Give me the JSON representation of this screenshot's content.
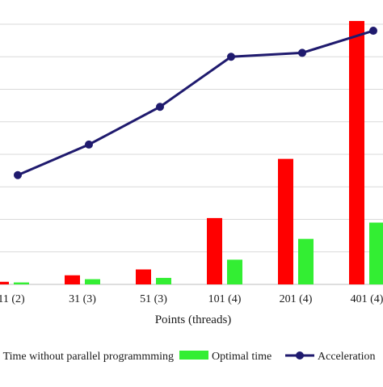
{
  "chart_data": {
    "type": "bar",
    "categories": [
      "11 (2)",
      "31 (3)",
      "51 (3)",
      "101 (4)",
      "201 (4)",
      "401 (4)"
    ],
    "xlabel": "Points (threads)",
    "ylabel": "",
    "ylim": [
      0,
      4.0
    ],
    "grid": true,
    "legend_position": "bottom",
    "series": [
      {
        "name": "Time without parallel programmming",
        "kind": "bar",
        "color": "#ff0000",
        "values": [
          0.04,
          0.14,
          0.23,
          1.02,
          1.93,
          4.05
        ]
      },
      {
        "name": "Optimal time",
        "kind": "bar",
        "color": "#33ee33",
        "values": [
          0.03,
          0.08,
          0.1,
          0.38,
          0.7,
          0.95
        ]
      },
      {
        "name": "Acceleration",
        "kind": "line",
        "color": "#1f1a6e",
        "values": [
          1.68,
          2.15,
          2.73,
          3.5,
          3.56,
          3.9
        ]
      }
    ]
  }
}
